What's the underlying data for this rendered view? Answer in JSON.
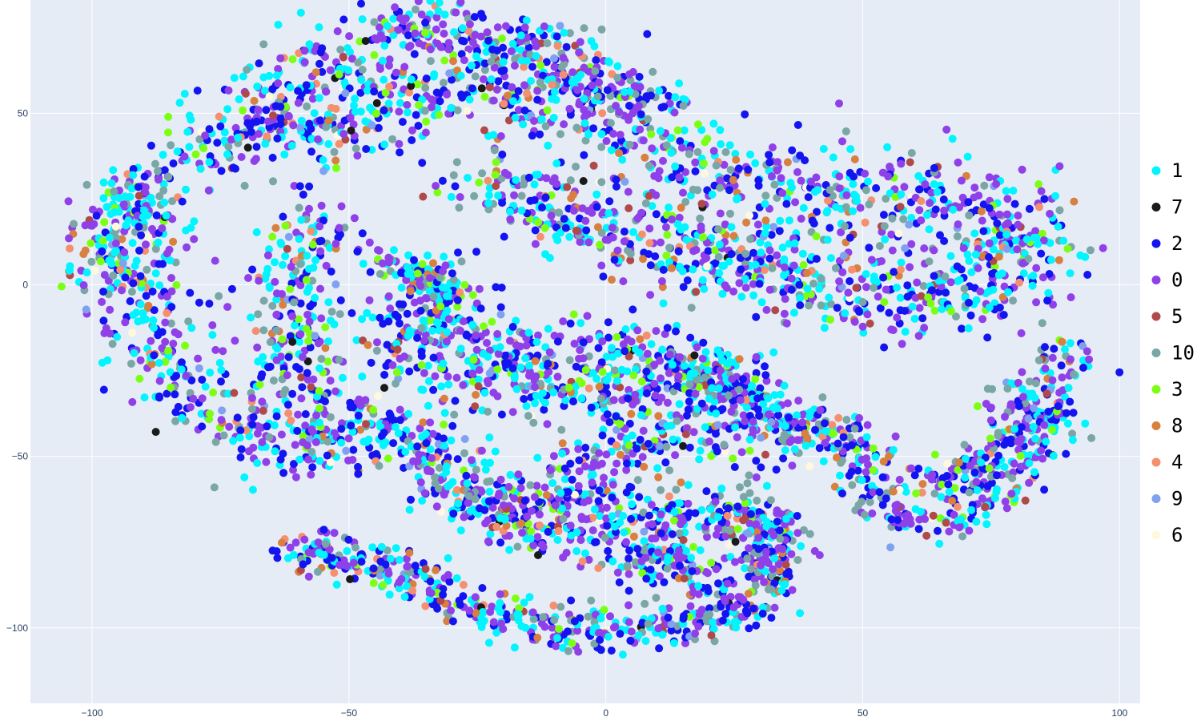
{
  "chart_data": {
    "type": "scatter",
    "title": "",
    "xlabel": "",
    "ylabel": "",
    "xlim": [
      -112,
      104
    ],
    "ylim": [
      -122,
      83
    ],
    "grid": true,
    "legend_placement": "right",
    "plot_background": "#e5ecf6",
    "gridline_color": "#ffffff",
    "x_ticks": [
      -100,
      -50,
      0,
      50,
      100
    ],
    "x_tick_labels": [
      "−100",
      "−50",
      "0",
      "50",
      "100"
    ],
    "y_ticks": [
      50,
      0,
      -50,
      -100
    ],
    "y_tick_labels": [
      "50",
      "0",
      "−50",
      "−100"
    ],
    "series": [
      {
        "name": "1",
        "color": "#00f5ff",
        "weight": 0.25
      },
      {
        "name": "7",
        "color": "#1a1a1a",
        "weight": 0.006
      },
      {
        "name": "2",
        "color": "#1414f0",
        "weight": 0.22
      },
      {
        "name": "0",
        "color": "#9040e8",
        "weight": 0.28
      },
      {
        "name": "5",
        "color": "#b04a4a",
        "weight": 0.02
      },
      {
        "name": "10",
        "color": "#7aa6a6",
        "weight": 0.1
      },
      {
        "name": "3",
        "color": "#7cff14",
        "weight": 0.05
      },
      {
        "name": "8",
        "color": "#d88040",
        "weight": 0.03
      },
      {
        "name": "4",
        "color": "#f49070",
        "weight": 0.02
      },
      {
        "name": "9",
        "color": "#80a0f0",
        "weight": 0.015
      },
      {
        "name": "6",
        "color": "#fff8e0",
        "weight": 0.009
      }
    ],
    "regions": [
      {
        "polyline": [
          [
            -98,
            2
          ],
          [
            -95,
            20
          ],
          [
            -85,
            32
          ],
          [
            -75,
            45
          ],
          [
            -62,
            60
          ],
          [
            -48,
            70
          ],
          [
            -35,
            78
          ],
          [
            -20,
            72
          ],
          [
            -8,
            65
          ],
          [
            5,
            55
          ],
          [
            12,
            50
          ]
        ],
        "width": 8,
        "count": 520
      },
      {
        "polyline": [
          [
            -68,
            40
          ],
          [
            -55,
            48
          ],
          [
            -40,
            55
          ],
          [
            -25,
            60
          ],
          [
            -10,
            58
          ],
          [
            5,
            45
          ],
          [
            15,
            35
          ],
          [
            30,
            30
          ],
          [
            50,
            25
          ],
          [
            70,
            22
          ],
          [
            84,
            18
          ]
        ],
        "width": 12,
        "count": 900
      },
      {
        "polyline": [
          [
            -25,
            30
          ],
          [
            -10,
            22
          ],
          [
            5,
            15
          ],
          [
            20,
            8
          ],
          [
            40,
            2
          ],
          [
            60,
            -5
          ],
          [
            80,
            5
          ],
          [
            86,
            12
          ]
        ],
        "width": 11,
        "count": 700
      },
      {
        "polyline": [
          [
            -90,
            25
          ],
          [
            -92,
            5
          ],
          [
            -88,
            -15
          ],
          [
            -82,
            -30
          ],
          [
            -70,
            -42
          ],
          [
            -55,
            -47
          ],
          [
            -45,
            -45
          ]
        ],
        "width": 10,
        "count": 420
      },
      {
        "polyline": [
          [
            -55,
            20
          ],
          [
            -60,
            5
          ],
          [
            -62,
            -15
          ],
          [
            -58,
            -30
          ],
          [
            -48,
            -40
          ]
        ],
        "width": 8,
        "count": 260
      },
      {
        "polyline": [
          [
            -38,
            5
          ],
          [
            -30,
            -5
          ],
          [
            -40,
            -15
          ],
          [
            -30,
            -25
          ],
          [
            -15,
            -30
          ],
          [
            0,
            -32
          ],
          [
            15,
            -28
          ],
          [
            25,
            -25
          ]
        ],
        "width": 9,
        "count": 430
      },
      {
        "polyline": [
          [
            -28,
            -15
          ],
          [
            -15,
            -20
          ],
          [
            0,
            -18
          ],
          [
            10,
            -22
          ],
          [
            25,
            -30
          ],
          [
            30,
            -38
          ],
          [
            35,
            -50
          ]
        ],
        "width": 9,
        "count": 320
      },
      {
        "polyline": [
          [
            -45,
            -40
          ],
          [
            -35,
            -50
          ],
          [
            -25,
            -60
          ],
          [
            -12,
            -65
          ],
          [
            0,
            -55
          ],
          [
            5,
            -45
          ],
          [
            15,
            -42
          ],
          [
            22,
            -45
          ]
        ],
        "width": 10,
        "count": 430
      },
      {
        "polyline": [
          [
            -28,
            -60
          ],
          [
            -18,
            -70
          ],
          [
            -5,
            -72
          ],
          [
            8,
            -70
          ],
          [
            20,
            -65
          ],
          [
            30,
            -70
          ],
          [
            32,
            -82
          ]
        ],
        "width": 8,
        "count": 330
      },
      {
        "polyline": [
          [
            -62,
            -78
          ],
          [
            -55,
            -78
          ],
          [
            -45,
            -80
          ],
          [
            -38,
            -84
          ],
          [
            -30,
            -92
          ],
          [
            -20,
            -98
          ],
          [
            -10,
            -100
          ],
          [
            0,
            -102
          ]
        ],
        "width": 6,
        "count": 310
      },
      {
        "polyline": [
          [
            0,
            -102
          ],
          [
            8,
            -98
          ],
          [
            15,
            -100
          ],
          [
            25,
            -95
          ],
          [
            30,
            -90
          ],
          [
            33,
            -80
          ],
          [
            30,
            -70
          ],
          [
            25,
            -65
          ]
        ],
        "width": 6,
        "count": 250
      },
      {
        "polyline": [
          [
            5,
            -85
          ],
          [
            10,
            -80
          ],
          [
            15,
            -78
          ],
          [
            20,
            -90
          ]
        ],
        "width": 6,
        "count": 110
      },
      {
        "polyline": [
          [
            20,
            -28
          ],
          [
            30,
            -35
          ],
          [
            38,
            -45
          ],
          [
            45,
            -40
          ],
          [
            50,
            -48
          ],
          [
            52,
            -60
          ],
          [
            58,
            -68
          ],
          [
            68,
            -68
          ],
          [
            78,
            -60
          ],
          [
            85,
            -45
          ],
          [
            88,
            -30
          ],
          [
            90,
            -18
          ]
        ],
        "width": 6,
        "count": 450
      },
      {
        "polyline": [
          [
            60,
            -58
          ],
          [
            70,
            -55
          ],
          [
            78,
            -45
          ],
          [
            82,
            -35
          ],
          [
            75,
            -30
          ]
        ],
        "width": 5,
        "count": 150
      },
      {
        "polyline": [
          [
            -45,
            8
          ],
          [
            -40,
            5
          ],
          [
            -32,
            -2
          ],
          [
            -30,
            -5
          ]
        ],
        "width": 4,
        "count": 90
      }
    ]
  }
}
